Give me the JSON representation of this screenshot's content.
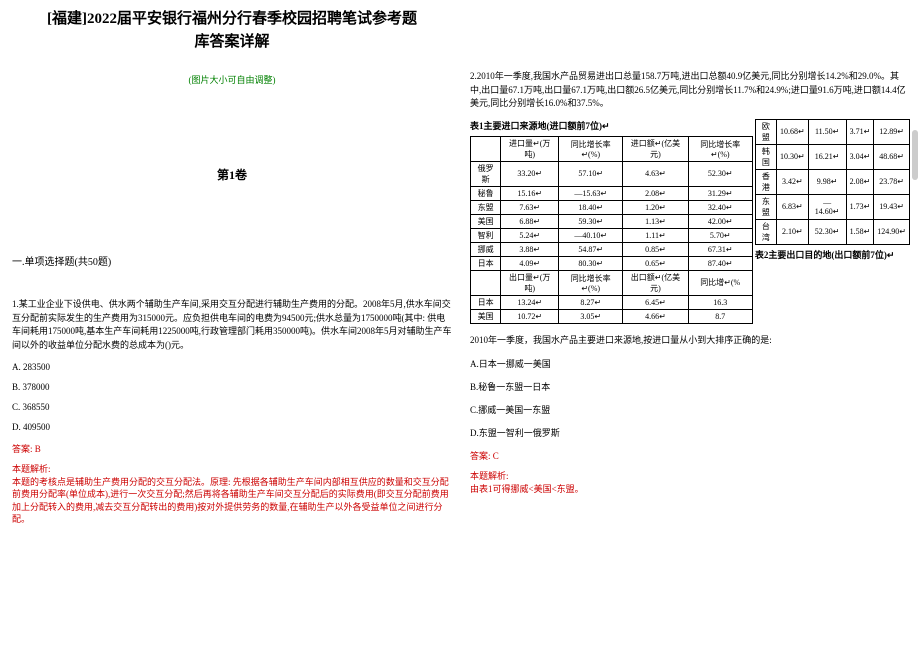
{
  "header": {
    "title_line1": "[福建]2022届平安银行福州分行春季校园招聘笔试参考题",
    "title_line2": "库答案详解",
    "note": "(图片大小可自由调整)",
    "section": "第1卷",
    "q_type": "一.单项选择题(共50题)"
  },
  "q1": {
    "text": "1.某工业企业下设供电、供水两个辅助生产车间,采用交互分配进行辅助生产费用的分配。2008年5月,供水车间交互分配前实际发生的生产费用为315000元。应负担供电车间的电费为94500元;供水总量为1750000吨(其中: 供电车间耗用175000吨,基本生产车间耗用1225000吨,行政管理部门耗用350000吨)。供水车间2008年5月对辅助生产车间以外的收益单位分配水费的总成本为()元。",
    "options": {
      "A": "A. 283500",
      "B": "B. 378000",
      "C": "C. 368550",
      "D": "D. 409500"
    },
    "answer": "答案: B",
    "analysis_title": "本题解析:",
    "analysis": "本题的考核点是辅助生产费用分配的交互分配法。原理: 先根据各辅助生产车间内部相互供应的数量和交互分配前费用分配率(单位成本),进行一次交互分配;然后再将各辅助生产车间交互分配后的实际费用(即交互分配前费用加上分配转入的费用,减去交互分配转出的费用)按对外提供劳务的数量,在辅助生产以外各受益单位之间进行分配。"
  },
  "q2": {
    "intro": "2.2010年一季度,我国水产品贸易进出口总量158.7万吨,进出口总额40.9亿美元,同比分别增长14.2%和29.0%。其中,出口量67.1万吨,出口量67.1万吨,出口额26.5亿美元,同比分别增长11.7%和24.9%;进口量91.6万吨,进口额14.4亿美元,同比分别增长16.0%和37.5%。",
    "t1_title": "表1主要进口来源地(进口额前7位)↵",
    "t2_title": "表2主要出口目的地(出口额前7位)↵",
    "t1_headers": [
      "",
      "进口量↵(万吨)",
      "同比增长率↵(%)",
      "进口额↵(亿美元)",
      "同比增长率↵(%)"
    ],
    "t1_rows": [
      [
        "俄罗斯",
        "33.20↵",
        "57.10↵",
        "4.63↵",
        "52.30↵"
      ],
      [
        "秘鲁",
        "15.16↵",
        "—15.63↵",
        "2.08↵",
        "31.29↵"
      ],
      [
        "东盟",
        "7.63↵",
        "18.40↵",
        "1.20↵",
        "32.40↵"
      ],
      [
        "美国",
        "6.88↵",
        "59.30↵",
        "1.13↵",
        "42.00↵"
      ],
      [
        "智利",
        "5.24↵",
        "—40.10↵",
        "1.11↵",
        "5.70↵"
      ],
      [
        "挪威",
        "3.88↵",
        "54.87↵",
        "0.85↵",
        "67.31↵"
      ],
      [
        "日本",
        "4.09↵",
        "80.30↵",
        "0.65↵",
        "87.40↵"
      ]
    ],
    "t1b_headers": [
      "",
      "出口量↵(万吨)",
      "同比增长率↵(%)",
      "出口额↵(亿美元)",
      "同比增↵(%"
    ],
    "t1b_rows": [
      [
        "日本",
        "13.24↵",
        "8.27↵",
        "6.45↵",
        "16.3"
      ],
      [
        "美国",
        "10.72↵",
        "3.05↵",
        "4.66↵",
        "8.7"
      ]
    ],
    "t2_rows": [
      [
        "欧盟",
        "10.68↵",
        "11.50↵",
        "3.71↵",
        "12.89↵"
      ],
      [
        "韩国",
        "10.30↵",
        "16.21↵",
        "3.04↵",
        "48.68↵"
      ],
      [
        "香港",
        "3.42↵",
        "9.98↵",
        "2.08↵",
        "23.78↵"
      ],
      [
        "东盟",
        "6.83↵",
        "—14.60↵",
        "1.73↵",
        "19.43↵"
      ],
      [
        "台湾",
        "2.10↵",
        "52.30↵",
        "1.58↵",
        "124.90↵"
      ]
    ],
    "question": "2010年一季度，我国水产品主要进口来源地,按进口量从小到大排序正确的是:",
    "options": {
      "A": "A.日本一挪威一美国",
      "B": "B.秘鲁一东盟一日本",
      "C": "C.挪威一美国一东盟",
      "D": "D.东盟一智利一俄罗斯"
    },
    "answer": "答案: C",
    "analysis_title": "本题解析:",
    "analysis": "由表1可得挪威<美国<东盟。"
  },
  "colors": {
    "red": "#c00000",
    "green": "#008000"
  }
}
